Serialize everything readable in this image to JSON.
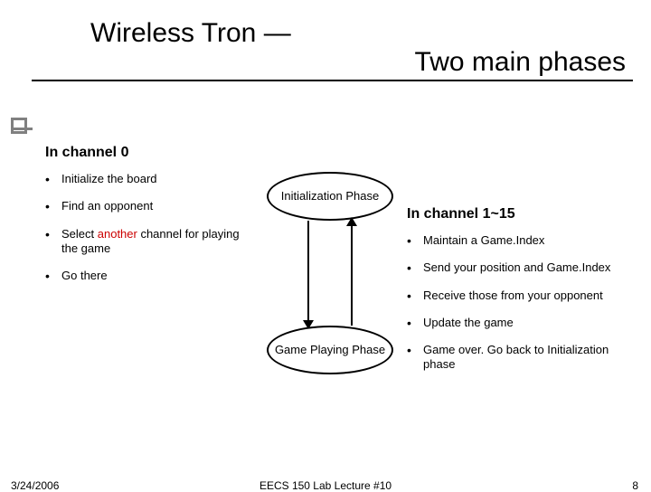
{
  "title": {
    "line1": "Wireless Tron —",
    "line2": "Two main phases"
  },
  "left": {
    "heading": "In channel 0",
    "items": [
      {
        "text": "Initialize the board"
      },
      {
        "text": "Find an opponent"
      },
      {
        "pre": "Select ",
        "highlight": "another",
        "post": " channel for playing the game",
        "highlight_color": "#cc0000"
      },
      {
        "text": "Go there"
      }
    ]
  },
  "right": {
    "heading": "In channel 1~15",
    "items": [
      {
        "text": "Maintain a Game.Index"
      },
      {
        "text": "Send your position and Game.Index"
      },
      {
        "text": "Receive those from your opponent"
      },
      {
        "text": "Update the game"
      },
      {
        "text": "Game over. Go back to Initialization phase"
      }
    ]
  },
  "diagram": {
    "top_label": "Initialization Phase",
    "bottom_label": "Game Playing Phase",
    "stroke": "#000000"
  },
  "footer": {
    "date": "3/24/2006",
    "center": "EECS 150 Lab Lecture #10",
    "page": "8"
  },
  "colors": {
    "text": "#000000",
    "highlight": "#cc0000",
    "accent": "#808080",
    "background": "#ffffff"
  },
  "typography": {
    "title_fontsize_pt": 30,
    "heading_fontsize_pt": 16,
    "body_fontsize_pt": 13,
    "footer_fontsize_pt": 12,
    "font_family": "Verdana"
  }
}
